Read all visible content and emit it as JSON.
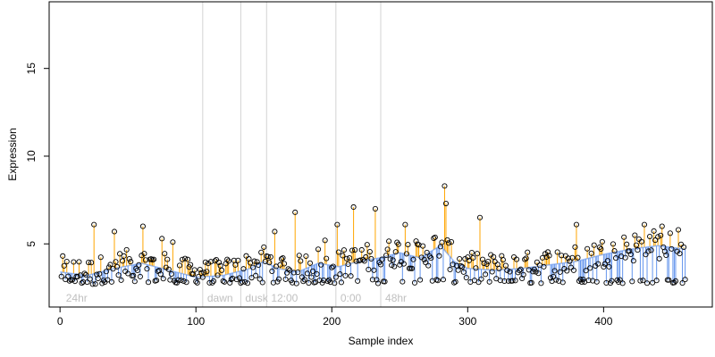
{
  "chart_data": {
    "type": "scatter",
    "title": "",
    "xlabel": "Sample index",
    "ylabel": "Expression",
    "xlim": [
      -8,
      480
    ],
    "ylim": [
      1.4,
      18.8
    ],
    "xticks": [
      0,
      100,
      200,
      300,
      400
    ],
    "yticks": [
      5,
      10,
      15
    ],
    "grid": false,
    "legend": "none",
    "baseline_trend": {
      "x": [
        0,
        20,
        40,
        60,
        80,
        100,
        120,
        140,
        150,
        160,
        175,
        190,
        205,
        220,
        235,
        250,
        265,
        280,
        290,
        300,
        320,
        340,
        360,
        380,
        400,
        420,
        440,
        460
      ],
      "y": [
        3.4,
        3.2,
        3.6,
        3.9,
        3.5,
        3.1,
        3.2,
        3.6,
        4.0,
        3.6,
        3.4,
        3.9,
        3.7,
        4.0,
        4.2,
        4.5,
        4.2,
        4.9,
        4.0,
        3.6,
        3.5,
        3.6,
        3.8,
        4.0,
        4.4,
        4.7,
        4.9,
        4.7
      ]
    },
    "group_boundaries": [
      105,
      133,
      152,
      203,
      236
    ],
    "group_labels": [
      {
        "x": 3,
        "label": "24hr"
      },
      {
        "x": 107,
        "label": "dawn"
      },
      {
        "x": 135,
        "label": "dusk"
      },
      {
        "x": 154,
        "label": "12:00"
      },
      {
        "x": 205,
        "label": "0:00"
      },
      {
        "x": 238,
        "label": "48hr"
      }
    ],
    "highlight_points": [
      {
        "x": 25,
        "y": 6.1
      },
      {
        "x": 40,
        "y": 5.7
      },
      {
        "x": 61,
        "y": 6.0
      },
      {
        "x": 75,
        "y": 5.3
      },
      {
        "x": 83,
        "y": 5.1
      },
      {
        "x": 158,
        "y": 5.7
      },
      {
        "x": 173,
        "y": 6.8
      },
      {
        "x": 195,
        "y": 5.2
      },
      {
        "x": 204,
        "y": 6.1
      },
      {
        "x": 216,
        "y": 7.1
      },
      {
        "x": 232,
        "y": 7.0
      },
      {
        "x": 254,
        "y": 6.1
      },
      {
        "x": 283,
        "y": 8.3
      },
      {
        "x": 284,
        "y": 7.3
      },
      {
        "x": 309,
        "y": 6.5
      },
      {
        "x": 380,
        "y": 6.1
      },
      {
        "x": 430,
        "y": 6.1
      },
      {
        "x": 443,
        "y": 6.0
      },
      {
        "x": 455,
        "y": 5.8
      }
    ],
    "point_count": 460,
    "colors": {
      "above_trend": "#ffa500",
      "below_trend": "#6495ed",
      "point_stroke": "#000000",
      "group_line": "#d3d3d3",
      "group_label": "#c0c0c0",
      "axis": "#000000"
    }
  }
}
